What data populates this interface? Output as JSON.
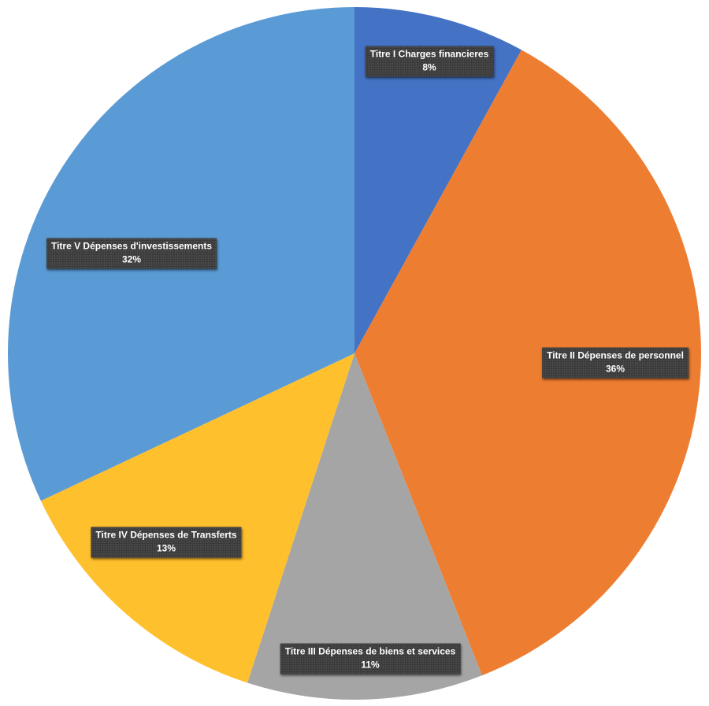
{
  "chart_data": {
    "type": "pie",
    "title": "",
    "start_angle_deg": 0,
    "direction": "clockwise",
    "legend": "none",
    "slices": [
      {
        "label": "Titre I Charges financieres",
        "value": 8,
        "value_label": "8%",
        "color": "#4472C4"
      },
      {
        "label": "Titre II Dépenses de personnel",
        "value": 36,
        "value_label": "36%",
        "color": "#ED7D31"
      },
      {
        "label": "Titre III Dépenses de biens et services",
        "value": 11,
        "value_label": "11%",
        "color": "#A5A5A5"
      },
      {
        "label": "Titre IV Dépenses de Transferts",
        "value": 13,
        "value_label": "13%",
        "color": "#FFC02E"
      },
      {
        "label": "Titre V Dépenses d'investissements",
        "value": 32,
        "value_label": "32%",
        "color": "#5B9BD5"
      }
    ]
  }
}
